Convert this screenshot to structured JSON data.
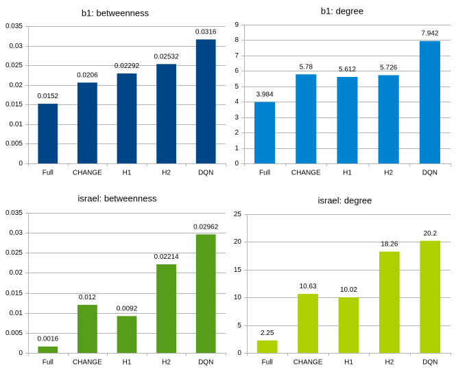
{
  "chart_data": [
    {
      "type": "bar",
      "title": "b1: betweenness",
      "categories": [
        "Full",
        "CHANGE",
        "H1",
        "H2",
        "DQN"
      ],
      "values": [
        0.0152,
        0.0206,
        0.02292,
        0.02532,
        0.0316
      ],
      "value_labels": [
        "0.0152",
        "0.0206",
        "0.02292",
        "0.02532",
        "0.0316"
      ],
      "yticks": [
        0,
        0.005,
        0.01,
        0.015,
        0.02,
        0.025,
        0.03,
        0.035
      ],
      "ytick_labels": [
        "0",
        "0.005",
        "0.01",
        "0.015",
        "0.02",
        "0.025",
        "0.03",
        "0.035"
      ],
      "ylim": [
        0,
        0.035
      ],
      "grid": true,
      "color": "#004586"
    },
    {
      "type": "bar",
      "title": "b1: degree",
      "categories": [
        "Full",
        "CHANGE",
        "H1",
        "H2",
        "DQN"
      ],
      "values": [
        3.984,
        5.78,
        5.612,
        5.726,
        7.942
      ],
      "value_labels": [
        "3.984",
        "5.78",
        "5.612",
        "5.726",
        "7.942"
      ],
      "yticks": [
        0,
        1,
        2,
        3,
        4,
        5,
        6,
        7,
        8,
        9
      ],
      "ytick_labels": [
        "0",
        "1",
        "2",
        "3",
        "4",
        "5",
        "6",
        "7",
        "8",
        "9"
      ],
      "ylim": [
        0,
        9
      ],
      "grid": true,
      "color": "#0084d1"
    },
    {
      "type": "bar",
      "title": "israel: betweenness",
      "categories": [
        "Full",
        "CHANGE",
        "H1",
        "H2",
        "DQN"
      ],
      "values": [
        0.0016,
        0.012,
        0.0092,
        0.02214,
        0.02962
      ],
      "value_labels": [
        "0.0016",
        "0.012",
        "0.0092",
        "0.02214",
        "0.02962"
      ],
      "yticks": [
        0,
        0.005,
        0.01,
        0.015,
        0.02,
        0.025,
        0.03,
        0.035
      ],
      "ytick_labels": [
        "0",
        "0.005",
        "0.01",
        "0.015",
        "0.02",
        "0.025",
        "0.03",
        "0.035"
      ],
      "ylim": [
        0,
        0.035
      ],
      "grid": true,
      "color": "#579d1c"
    },
    {
      "type": "bar",
      "title": "israel: degree",
      "categories": [
        "Full",
        "CHANGE",
        "H1",
        "H2",
        "DQN"
      ],
      "values": [
        2.25,
        10.63,
        10.02,
        18.26,
        20.2
      ],
      "value_labels": [
        "2.25",
        "10.63",
        "10.02",
        "18.26",
        "20.2"
      ],
      "yticks": [
        0,
        5,
        10,
        15,
        20,
        25
      ],
      "ytick_labels": [
        "0",
        "5",
        "10",
        "15",
        "20",
        "25"
      ],
      "ylim": [
        0,
        25
      ],
      "grid": true,
      "color": "#aecf00"
    }
  ]
}
